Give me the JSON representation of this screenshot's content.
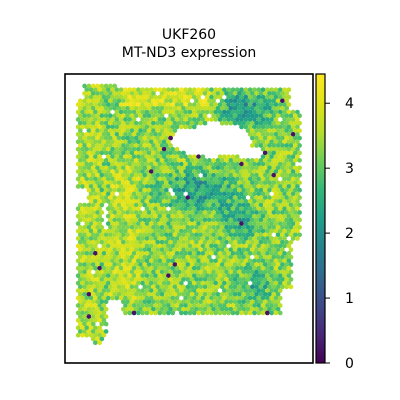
{
  "chart_data": {
    "type": "scatter",
    "title": "UKF260",
    "subtitle": "MT-ND3 expression",
    "xlabel": "",
    "ylabel": "",
    "grid": false,
    "colormap": "viridis",
    "colorbar": {
      "range": [
        0,
        4.45
      ],
      "ticks": [
        0,
        1,
        2,
        3,
        4
      ],
      "tick_labels": [
        "0",
        "1",
        "2",
        "3",
        "4"
      ]
    },
    "colors": {
      "viridis_low": "#440154",
      "viridis_mid": "#21918c",
      "viridis_high": "#fde725"
    },
    "value_summary": {
      "typical": 3.3,
      "low_region": 1.8,
      "min": 0,
      "max": 4.4
    }
  }
}
